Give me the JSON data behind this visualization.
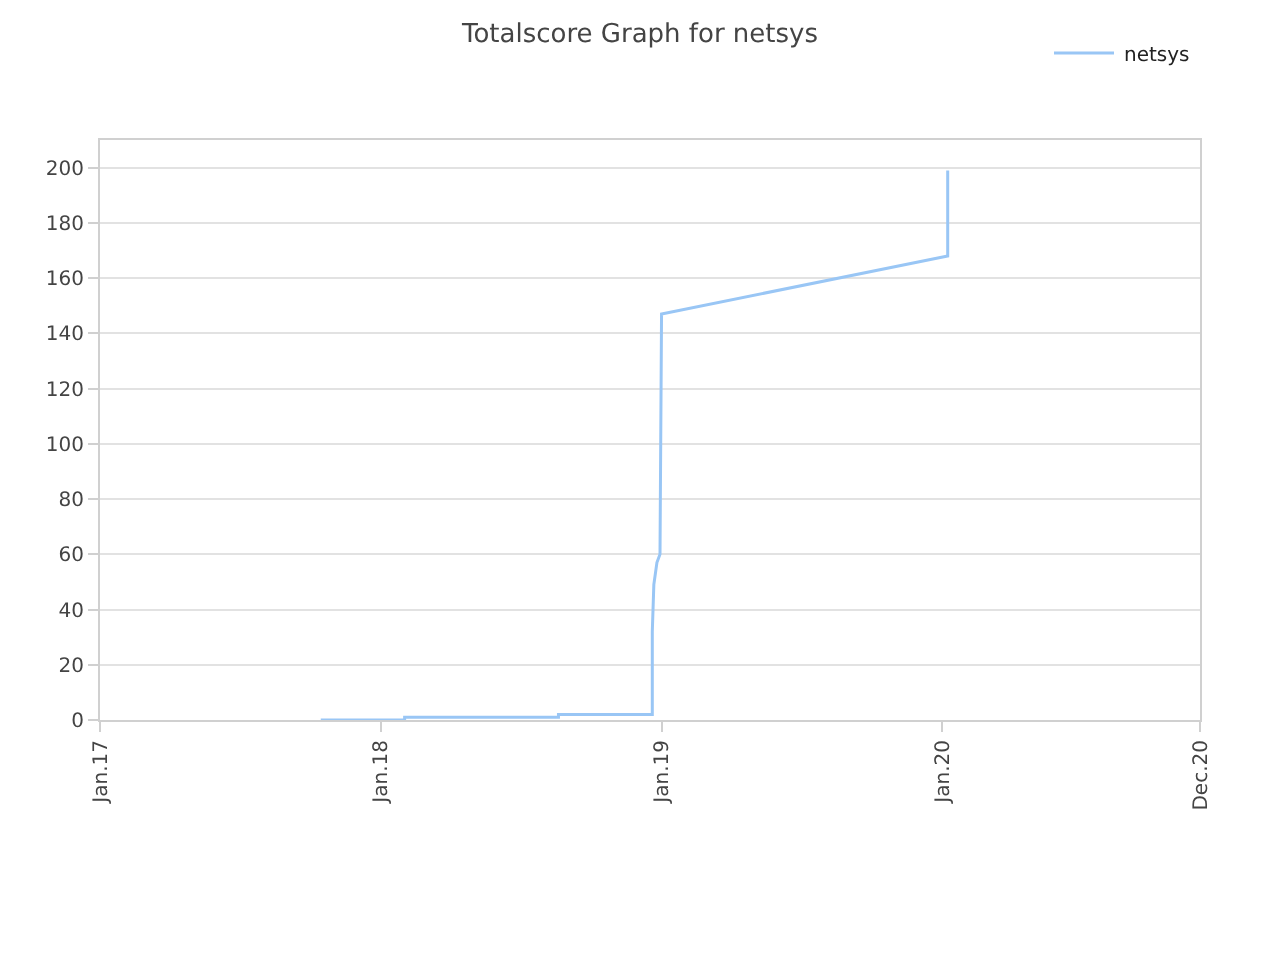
{
  "chart_data": {
    "type": "line",
    "title": "Totalscore Graph for netsys",
    "x": [
      "2017-10-15",
      "2018-02-01",
      "2018-02-01",
      "2018-08-20",
      "2018-08-20",
      "2018-12-20",
      "2018-12-20",
      "2018-12-22",
      "2018-12-26",
      "2018-12-30",
      "2019-01-01",
      "2020-01-08",
      "2020-01-08"
    ],
    "series": [
      {
        "name": "netsys",
        "color": "#99c6f5",
        "values": [
          0,
          0,
          1,
          1,
          2,
          2,
          32,
          49,
          57,
          60,
          147,
          168,
          199
        ]
      }
    ],
    "xlim": [
      "2017-01-01",
      "2020-12-01"
    ],
    "xticks": [
      {
        "value": "2017-01-01",
        "label": "Jan.17"
      },
      {
        "value": "2018-01-01",
        "label": "Jan.18"
      },
      {
        "value": "2019-01-01",
        "label": "Jan.19"
      },
      {
        "value": "2020-01-01",
        "label": "Jan.20"
      },
      {
        "value": "2020-12-01",
        "label": "Dec.20"
      }
    ],
    "ylim": [
      0,
      210
    ],
    "yticks": [
      0,
      20,
      40,
      60,
      80,
      100,
      120,
      140,
      160,
      180,
      200
    ],
    "grid": "y",
    "legend": "top right",
    "marker": "none",
    "line_style": "solid"
  }
}
